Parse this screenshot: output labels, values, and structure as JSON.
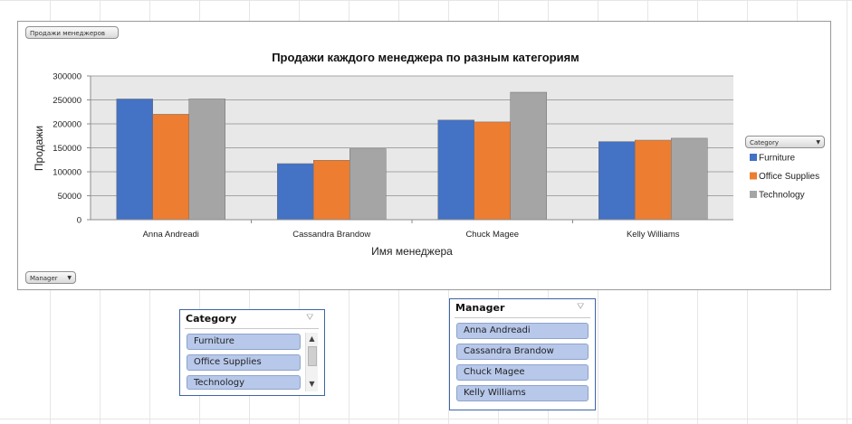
{
  "chart_filter_button": {
    "label": "Продажи менеджеров"
  },
  "legend_filter": {
    "label": "Category"
  },
  "axis_filter": {
    "label": "Manager"
  },
  "chart_data": {
    "type": "bar",
    "title": "Продажи каждого менеджера по разным категориям",
    "xlabel": "Имя менеджера",
    "ylabel": "Продажи",
    "ylim": [
      0,
      300000
    ],
    "yticks": [
      "0",
      "50000",
      "100000",
      "150000",
      "200000",
      "250000",
      "300000"
    ],
    "categories": [
      "Anna Andreadi",
      "Cassandra Brandow",
      "Chuck Magee",
      "Kelly Williams"
    ],
    "series": [
      {
        "name": "Furniture",
        "color": "#4472c4",
        "values": [
          252000,
          117000,
          208000,
          163000
        ]
      },
      {
        "name": "Office Supplies",
        "color": "#ed7d31",
        "values": [
          220000,
          124000,
          204000,
          166000
        ]
      },
      {
        "name": "Technology",
        "color": "#a5a5a5",
        "values": [
          252000,
          148000,
          266000,
          170000
        ]
      }
    ],
    "grid": true,
    "legend_position": "right"
  },
  "category_slicer": {
    "header": "Category",
    "items": [
      "Furniture",
      "Office Supplies",
      "Technology"
    ]
  },
  "manager_slicer": {
    "header": "Manager",
    "items": [
      "Anna Andreadi",
      "Cassandra Brandow",
      "Chuck Magee",
      "Kelly Williams"
    ]
  },
  "colors": {
    "slicer_item_bg": "#b7c8ea",
    "slicer_border": "#3e64a6"
  }
}
